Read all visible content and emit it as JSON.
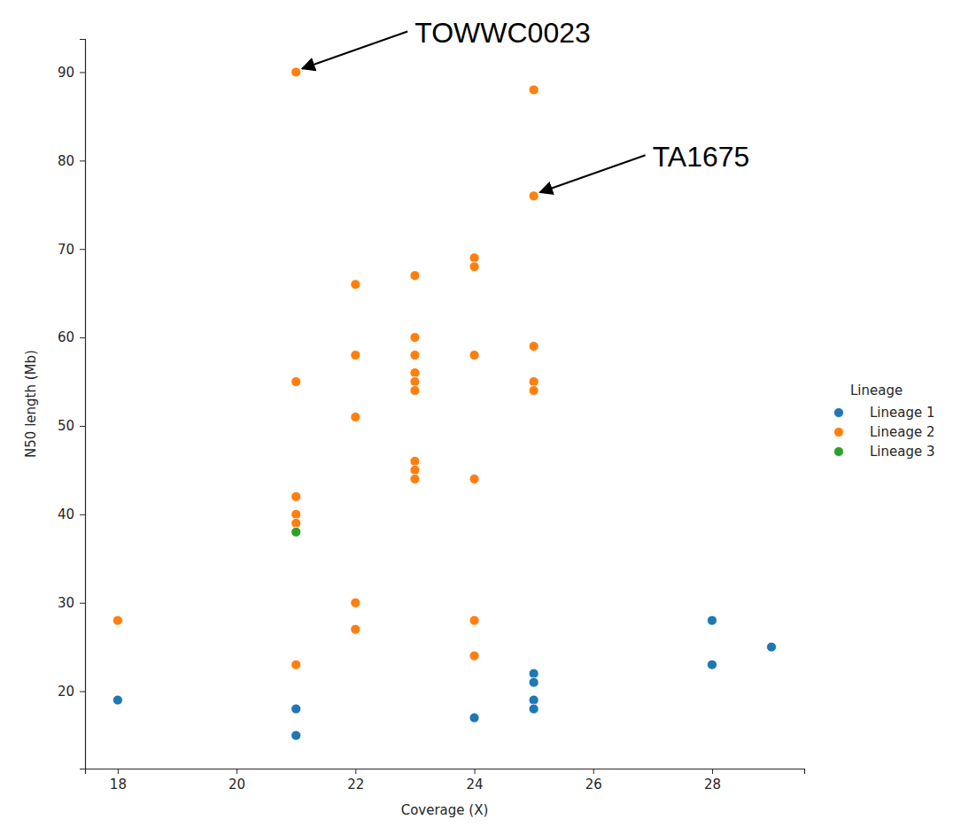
{
  "chart_data": {
    "type": "scatter",
    "xlabel": "Coverage (X)",
    "ylabel": "N50 length (Mb)",
    "xlim": [
      17.45,
      29.55
    ],
    "ylim": [
      11.25,
      93.75
    ],
    "xticks": [
      18,
      20,
      22,
      24,
      26,
      28
    ],
    "yticks": [
      20,
      30,
      40,
      50,
      60,
      70,
      80,
      90
    ],
    "legend": "right",
    "legend_title": "Lineage",
    "marker": "circle",
    "series": [
      {
        "name": "Lineage 1",
        "color": "#1f77b4",
        "x": [
          18,
          21,
          21,
          24,
          25,
          25,
          25,
          25,
          28,
          28,
          29
        ],
        "values": [
          19,
          18,
          15,
          17,
          22,
          21,
          19,
          18,
          28,
          23,
          25
        ]
      },
      {
        "name": "Lineage 2",
        "color": "#ff7f0e",
        "x": [
          21,
          25,
          25,
          24,
          24,
          23,
          22,
          23,
          25,
          22,
          23,
          24,
          23,
          23,
          25,
          21,
          23,
          25,
          22,
          23,
          23,
          23,
          24,
          21,
          21,
          21,
          22,
          18,
          24,
          22,
          24,
          21
        ],
        "values": [
          90,
          88,
          76,
          69,
          68,
          67,
          66,
          60,
          59,
          58,
          58,
          58,
          56,
          55,
          55,
          55,
          54,
          54,
          51,
          46,
          45,
          44,
          44,
          42,
          40,
          39,
          30,
          28,
          28,
          27,
          24,
          23
        ]
      },
      {
        "name": "Lineage 3",
        "color": "#2ca02c",
        "x": [
          21
        ],
        "values": [
          38
        ]
      }
    ],
    "annotations": [
      {
        "text": "TOWWC0023",
        "x": 21,
        "y": 90
      },
      {
        "text": "TA1675",
        "x": 25,
        "y": 76
      }
    ]
  }
}
